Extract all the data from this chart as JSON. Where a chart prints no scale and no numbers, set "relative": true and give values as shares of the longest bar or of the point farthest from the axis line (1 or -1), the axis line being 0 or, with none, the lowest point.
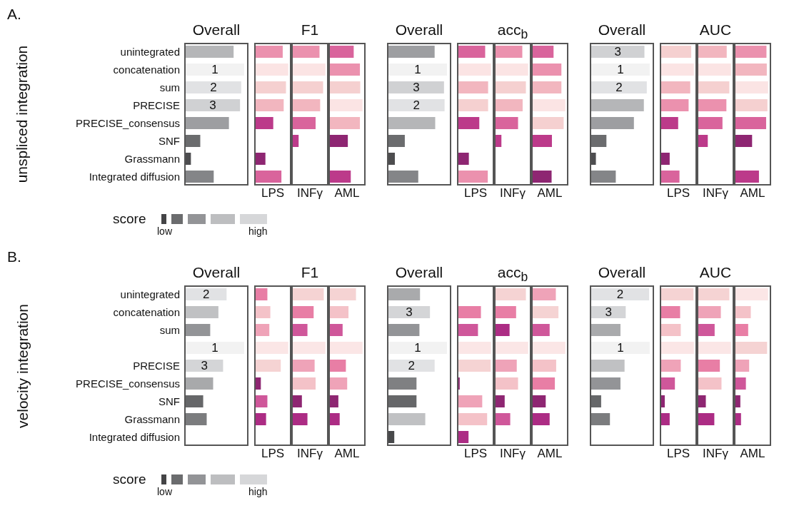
{
  "chart_data": [
    {
      "type": "bar",
      "orientation": "horizontal",
      "relative": true,
      "title": "Overall",
      "ylabel": "unspliced integration",
      "tick_labels": "y",
      "annotations": [
        "A.",
        "score",
        "low",
        "high",
        {
          "text": "1",
          "x": 1,
          "y": "concatenation"
        },
        {
          "text": "2",
          "x": 0.95,
          "y": "sum"
        },
        {
          "text": "3",
          "x": 0.93,
          "y": "PRECISE"
        }
      ],
      "categories": [
        "unintegrated",
        "concatenation",
        "sum",
        "PRECISE",
        "PRECISE_consensus",
        "SNF",
        "Grassmann",
        "Integrated diffusion"
      ],
      "values": [
        0.82,
        1,
        0.95,
        0.93,
        0.74,
        0.25,
        0.09,
        0.48
      ],
      "colors": [
        "#b5b6b8",
        "#f2f2f2",
        "#e1e2e4",
        "#d0d1d3",
        "#9d9ea1",
        "#6b6c6e",
        "#4d4d4f",
        "#848588"
      ]
    },
    {
      "type": "bar",
      "orientation": "horizontal",
      "relative": true,
      "xlabel": "LPS",
      "tick_labels": false,
      "categories": [
        "unintegrated",
        "concatenation",
        "sum",
        "PRECISE",
        "PRECISE_consensus",
        "SNF",
        "Grassmann",
        "Integrated diffusion"
      ],
      "values": [
        0.83,
        1,
        0.93,
        0.86,
        0.54,
        null,
        0.3,
        0.79
      ],
      "colors": [
        "#eb91ae",
        "#fbe4e4",
        "#f5d0d0",
        "#f2b6bf",
        "#bc3a8a",
        "#8e2672",
        "#8e2672",
        "#d9649c"
      ]
    },
    {
      "type": "bar",
      "orientation": "horizontal",
      "relative": true,
      "title": "F1",
      "xlabel": "INFγ",
      "tick_labels": false,
      "categories": [
        "unintegrated",
        "concatenation",
        "sum",
        "PRECISE",
        "PRECISE_consensus",
        "SNF",
        "Grassmann",
        "Integrated diffusion"
      ],
      "values": [
        0.82,
        1,
        0.93,
        0.84,
        0.7,
        0.18,
        null,
        null
      ],
      "colors": [
        "#eb91ae",
        "#fbe4e4",
        "#f5d0d0",
        "#f2b6bf",
        "#d9649c",
        "#bc3a8a",
        "#8e2672",
        "#8e2672"
      ]
    },
    {
      "type": "bar",
      "orientation": "horizontal",
      "relative": true,
      "xlabel": "AML",
      "tick_labels": false,
      "categories": [
        "unintegrated",
        "concatenation",
        "sum",
        "PRECISE",
        "PRECISE_consensus",
        "SNF",
        "Grassmann",
        "Integrated diffusion"
      ],
      "values": [
        0.73,
        0.92,
        0.93,
        1,
        0.92,
        0.55,
        null,
        0.64
      ],
      "colors": [
        "#d9649c",
        "#eb91ae",
        "#f5d0d0",
        "#fbe4e4",
        "#f2b6bf",
        "#8e2672",
        "#8e2672",
        "#bc3a8a"
      ]
    },
    {
      "type": "bar",
      "orientation": "horizontal",
      "relative": true,
      "title": "Overall",
      "tick_labels": false,
      "categories": [
        "unintegrated",
        "concatenation",
        "sum",
        "PRECISE",
        "PRECISE_consensus",
        "SNF",
        "Grassmann",
        "Integrated diffusion"
      ],
      "values": [
        0.79,
        1,
        0.95,
        0.96,
        0.8,
        0.28,
        0.11,
        0.51
      ],
      "colors": [
        "#9d9ea1",
        "#f2f2f2",
        "#d0d1d3",
        "#e1e2e4",
        "#b5b6b8",
        "#6b6c6e",
        "#4d4d4f",
        "#848588"
      ],
      "annotations": [
        {
          "text": "1",
          "x": 1,
          "y": "concatenation"
        },
        {
          "text": "3",
          "x": 0.95,
          "y": "sum"
        },
        {
          "text": "2",
          "x": 0.96,
          "y": "PRECISE"
        }
      ]
    },
    {
      "type": "bar",
      "orientation": "horizontal",
      "relative": true,
      "xlabel": "LPS",
      "tick_labels": false,
      "categories": [
        "unintegrated",
        "concatenation",
        "sum",
        "PRECISE",
        "PRECISE_consensus",
        "SNF",
        "Grassmann",
        "Integrated diffusion"
      ],
      "values": [
        0.82,
        1,
        0.91,
        0.91,
        0.64,
        null,
        0.32,
        0.9
      ],
      "colors": [
        "#d9649c",
        "#fbe4e4",
        "#f2b6bf",
        "#f5d0d0",
        "#bc3a8a",
        "#8e2672",
        "#8e2672",
        "#eb91ae"
      ]
    },
    {
      "type": "bar",
      "orientation": "horizontal",
      "relative": true,
      "title": "acc$_{b}$",
      "xlabel": "INFγ",
      "tick_labels": false,
      "categories": [
        "unintegrated",
        "concatenation",
        "sum",
        "PRECISE",
        "PRECISE_consensus",
        "SNF",
        "Grassmann",
        "Integrated diffusion"
      ],
      "values": [
        0.82,
        1,
        0.93,
        0.83,
        0.69,
        0.18,
        null,
        null
      ],
      "colors": [
        "#eb91ae",
        "#fbe4e4",
        "#f5d0d0",
        "#f2b6bf",
        "#d9649c",
        "#bc3a8a",
        "#8e2672",
        "#8e2672"
      ]
    },
    {
      "type": "bar",
      "orientation": "horizontal",
      "relative": true,
      "xlabel": "AML",
      "tick_labels": false,
      "categories": [
        "unintegrated",
        "concatenation",
        "sum",
        "PRECISE",
        "PRECISE_consensus",
        "SNF",
        "Grassmann",
        "Integrated diffusion"
      ],
      "values": [
        0.64,
        0.88,
        0.88,
        1,
        0.95,
        0.59,
        null,
        0.58
      ],
      "colors": [
        "#d9649c",
        "#eb91ae",
        "#f2b6bf",
        "#fbe4e4",
        "#f5d0d0",
        "#bc3a8a",
        "#8e2672",
        "#8e2672"
      ]
    },
    {
      "type": "bar",
      "orientation": "horizontal",
      "relative": true,
      "title": "Overall",
      "tick_labels": false,
      "categories": [
        "unintegrated",
        "concatenation",
        "sum",
        "PRECISE",
        "PRECISE_consensus",
        "SNF",
        "Grassmann",
        "Integrated diffusion"
      ],
      "values": [
        0.91,
        1,
        0.95,
        0.9,
        0.73,
        0.26,
        0.08,
        0.42
      ],
      "colors": [
        "#d0d1d3",
        "#f2f2f2",
        "#e1e2e4",
        "#b5b6b8",
        "#9d9ea1",
        "#6b6c6e",
        "#4d4d4f",
        "#848588"
      ],
      "annotations": [
        {
          "text": "3",
          "x": 0.91,
          "y": "unintegrated"
        },
        {
          "text": "1",
          "x": 1,
          "y": "concatenation"
        },
        {
          "text": "2",
          "x": 0.95,
          "y": "sum"
        }
      ]
    },
    {
      "type": "bar",
      "orientation": "horizontal",
      "relative": true,
      "xlabel": "LPS",
      "tick_labels": false,
      "categories": [
        "unintegrated",
        "concatenation",
        "sum",
        "PRECISE",
        "PRECISE_consensus",
        "SNF",
        "Grassmann",
        "Integrated diffusion"
      ],
      "values": [
        0.92,
        1,
        0.89,
        0.84,
        0.52,
        null,
        0.26,
        0.56
      ],
      "colors": [
        "#f5d0d0",
        "#fbe4e4",
        "#f2b6bf",
        "#eb91ae",
        "#bc3a8a",
        "#8e2672",
        "#8e2672",
        "#d9649c"
      ]
    },
    {
      "type": "bar",
      "orientation": "horizontal",
      "relative": true,
      "title": "AUC",
      "xlabel": "INFγ",
      "tick_labels": false,
      "categories": [
        "unintegrated",
        "concatenation",
        "sum",
        "PRECISE",
        "PRECISE_consensus",
        "SNF",
        "Grassmann",
        "Integrated diffusion"
      ],
      "values": [
        0.87,
        1,
        0.95,
        0.86,
        0.74,
        0.29,
        null,
        null
      ],
      "colors": [
        "#f2b6bf",
        "#fbe4e4",
        "#f5d0d0",
        "#eb91ae",
        "#d9649c",
        "#bc3a8a",
        "#8e2672",
        "#8e2672"
      ]
    },
    {
      "type": "bar",
      "orientation": "horizontal",
      "relative": true,
      "xlabel": "AML",
      "tick_labels": false,
      "categories": [
        "unintegrated",
        "concatenation",
        "sum",
        "PRECISE",
        "PRECISE_consensus",
        "SNF",
        "Grassmann",
        "Integrated diffusion"
      ],
      "values": [
        0.95,
        0.96,
        1,
        0.98,
        0.94,
        0.51,
        null,
        0.72
      ],
      "colors": [
        "#eb91ae",
        "#f2b6bf",
        "#fbe4e4",
        "#f5d0d0",
        "#d9649c",
        "#8e2672",
        "#8e2672",
        "#bc3a8a"
      ]
    },
    {
      "type": "bar",
      "orientation": "horizontal",
      "relative": true,
      "title": "Overall",
      "ylabel": "velocity integration",
      "tick_labels": "y",
      "annotations": [
        "B.",
        "score",
        "low",
        "high",
        {
          "text": "2",
          "x": 0.7,
          "y": "unintegrated"
        },
        {
          "text": "1",
          "x": 1
        },
        {
          "text": "3",
          "x": 0.64,
          "y": "PRECISE"
        }
      ],
      "categories": [
        "unintegrated",
        "concatenation",
        "sum",
        null,
        "PRECISE",
        "PRECISE_consensus",
        "SNF",
        "Grassmann",
        "Integrated diffusion"
      ],
      "values": [
        0.7,
        0.56,
        0.42,
        1,
        0.64,
        0.47,
        0.3,
        0.36,
        null
      ],
      "colors": [
        "#e1e2e4",
        "#c0c1c3",
        "#939497",
        "#f2f2f2",
        "#d4d5d7",
        "#a8a9ab",
        "#666769",
        "#7b7c7e",
        "#48494b"
      ]
    },
    {
      "type": "bar",
      "orientation": "horizontal",
      "relative": true,
      "xlabel": "LPS",
      "tick_labels": false,
      "categories": [
        "unintegrated",
        "concatenation",
        "sum",
        null,
        "PRECISE",
        "PRECISE_consensus",
        "SNF",
        "Grassmann",
        "Integrated diffusion"
      ],
      "values": [
        0.36,
        0.45,
        0.42,
        1,
        0.77,
        0.16,
        0.36,
        0.32,
        null
      ],
      "colors": [
        "#e87ea5",
        "#f4c2c8",
        "#efa3b8",
        "#fbe6e6",
        "#f5d3d3",
        "#8e2672",
        "#cf579a",
        "#ac2c84",
        "#ac2c84"
      ]
    },
    {
      "type": "bar",
      "orientation": "horizontal",
      "relative": true,
      "title": "F1",
      "xlabel": "INFγ",
      "tick_labels": false,
      "categories": [
        "unintegrated",
        "concatenation",
        "sum",
        null,
        "PRECISE",
        "PRECISE_consensus",
        "SNF",
        "Grassmann",
        "Integrated diffusion"
      ],
      "values": [
        0.95,
        0.64,
        0.45,
        1,
        0.67,
        0.7,
        0.28,
        0.45,
        null
      ],
      "colors": [
        "#f5d3d3",
        "#e87ea5",
        "#cf579a",
        "#fbe6e6",
        "#efa3b8",
        "#f4c2c8",
        "#8e2672",
        "#ac2c84",
        "#ac2c84"
      ]
    },
    {
      "type": "bar",
      "orientation": "horizontal",
      "relative": true,
      "xlabel": "AML",
      "tick_labels": false,
      "categories": [
        "unintegrated",
        "concatenation",
        "sum",
        null,
        "PRECISE",
        "PRECISE_consensus",
        "SNF",
        "Grassmann",
        "Integrated diffusion"
      ],
      "values": [
        0.8,
        0.57,
        0.39,
        1,
        0.49,
        0.53,
        0.26,
        0.3,
        null
      ],
      "colors": [
        "#f5d3d3",
        "#f4c2c8",
        "#cf579a",
        "#fbe6e6",
        "#e87ea5",
        "#efa3b8",
        "#8e2672",
        "#ac2c84",
        "#ac2c84"
      ]
    },
    {
      "type": "bar",
      "orientation": "horizontal",
      "relative": true,
      "title": "Overall",
      "tick_labels": false,
      "categories": [
        "unintegrated",
        "concatenation",
        "sum",
        null,
        "PRECISE",
        "PRECISE_consensus",
        "SNF",
        "Grassmann",
        "Integrated diffusion"
      ],
      "values": [
        0.54,
        0.71,
        0.53,
        1,
        0.79,
        0.48,
        0.48,
        0.63,
        0.1
      ],
      "colors": [
        "#a9aaac",
        "#d4d5d7",
        "#939497",
        "#f2f2f2",
        "#e1e2e4",
        "#7f8082",
        "#666769",
        "#c0c1c3",
        "#48494b"
      ],
      "annotations": [
        {
          "text": "3",
          "x": 0.71,
          "y": "concatenation"
        },
        {
          "text": "1",
          "x": 1
        },
        {
          "text": "2",
          "x": 0.79,
          "y": "PRECISE"
        }
      ]
    },
    {
      "type": "bar",
      "orientation": "horizontal",
      "relative": true,
      "xlabel": "LPS",
      "tick_labels": false,
      "categories": [
        "unintegrated",
        "concatenation",
        "sum",
        null,
        "PRECISE",
        "PRECISE_consensus",
        "SNF",
        "Grassmann",
        "Integrated diffusion"
      ],
      "values": [
        null,
        0.69,
        0.6,
        1,
        0.99,
        0.04,
        0.73,
        0.88,
        0.31
      ],
      "colors": [
        "#e87ea5",
        "#e87ea5",
        "#cf579a",
        "#fbe6e6",
        "#f5d3d3",
        "#8e2672",
        "#efa3b8",
        "#f4c2c8",
        "#ac2c84"
      ]
    },
    {
      "type": "bar",
      "orientation": "horizontal",
      "relative": true,
      "title": "acc$_{b}$",
      "xlabel": "INFγ",
      "tick_labels": false,
      "categories": [
        "unintegrated",
        "concatenation",
        "sum",
        null,
        "PRECISE",
        "PRECISE_consensus",
        "SNF",
        "Grassmann",
        "Integrated diffusion"
      ],
      "values": [
        0.93,
        0.63,
        0.43,
        1,
        0.65,
        0.69,
        0.28,
        0.45,
        null
      ],
      "colors": [
        "#f5d3d3",
        "#e87ea5",
        "#ac2c84",
        "#fbe6e6",
        "#efa3b8",
        "#f4c2c8",
        "#8e2672",
        "#cf579a",
        "#cf579a"
      ]
    },
    {
      "type": "bar",
      "orientation": "horizontal",
      "relative": true,
      "xlabel": "AML",
      "tick_labels": false,
      "categories": [
        "unintegrated",
        "concatenation",
        "sum",
        null,
        "PRECISE",
        "PRECISE_consensus",
        "SNF",
        "Grassmann",
        "Integrated diffusion"
      ],
      "values": [
        0.71,
        0.79,
        0.52,
        1,
        0.72,
        0.68,
        0.4,
        0.52,
        null
      ],
      "colors": [
        "#efa3b8",
        "#f5d3d3",
        "#cf579a",
        "#fbe6e6",
        "#f4c2c8",
        "#e87ea5",
        "#8e2672",
        "#ac2c84",
        "#ac2c84"
      ]
    },
    {
      "type": "bar",
      "orientation": "horizontal",
      "relative": true,
      "title": "Overall",
      "tick_labels": false,
      "categories": [
        "unintegrated",
        "concatenation",
        "sum",
        null,
        "PRECISE",
        "PRECISE_consensus",
        "SNF",
        "Grassmann",
        "Integrated diffusion"
      ],
      "values": [
        0.99,
        0.59,
        0.5,
        1,
        0.57,
        0.5,
        0.17,
        0.32,
        null
      ],
      "colors": [
        "#e1e2e4",
        "#d4d5d7",
        "#a9aaac",
        "#f2f2f2",
        "#c0c1c3",
        "#939497",
        "#666769",
        "#7b7c7e",
        "#7b7c7e"
      ],
      "annotations": [
        {
          "text": "2",
          "x": 0.99,
          "y": "unintegrated"
        },
        {
          "text": "3",
          "x": 0.59,
          "y": "concatenation"
        },
        {
          "text": "1",
          "x": 1
        }
      ]
    },
    {
      "type": "bar",
      "orientation": "horizontal",
      "relative": true,
      "xlabel": "LPS",
      "tick_labels": false,
      "categories": [
        "unintegrated",
        "concatenation",
        "sum",
        null,
        "PRECISE",
        "PRECISE_consensus",
        "SNF",
        "Grassmann",
        "Integrated diffusion"
      ],
      "values": [
        0.99,
        0.58,
        0.6,
        1,
        0.6,
        0.42,
        0.11,
        0.26,
        null
      ],
      "colors": [
        "#f5d3d3",
        "#e87ea5",
        "#f4c2c8",
        "#fbe6e6",
        "#efa3b8",
        "#cf579a",
        "#8e2672",
        "#ac2c84",
        "#ac2c84"
      ]
    },
    {
      "type": "bar",
      "orientation": "horizontal",
      "relative": true,
      "title": "AUC",
      "xlabel": "INFγ",
      "tick_labels": false,
      "categories": [
        "unintegrated",
        "concatenation",
        "sum",
        null,
        "PRECISE",
        "PRECISE_consensus",
        "SNF",
        "Grassmann",
        "Integrated diffusion"
      ],
      "values": [
        0.95,
        0.69,
        0.5,
        1,
        0.66,
        0.71,
        0.23,
        0.49,
        null
      ],
      "colors": [
        "#f5d3d3",
        "#efa3b8",
        "#cf579a",
        "#fbe6e6",
        "#e87ea5",
        "#f4c2c8",
        "#8e2672",
        "#ac2c84",
        "#ac2c84"
      ]
    },
    {
      "type": "bar",
      "orientation": "horizontal",
      "relative": true,
      "xlabel": "AML",
      "tick_labels": false,
      "categories": [
        "unintegrated",
        "concatenation",
        "sum",
        null,
        "PRECISE",
        "PRECISE_consensus",
        "SNF",
        "Grassmann",
        "Integrated diffusion"
      ],
      "values": [
        1,
        0.47,
        0.39,
        0.97,
        0.42,
        0.32,
        0.15,
        0.17,
        null
      ],
      "colors": [
        "#fbe6e6",
        "#f4c2c8",
        "#e87ea5",
        "#f5d3d3",
        "#efa3b8",
        "#cf579a",
        "#8e2672",
        "#ac2c84",
        "#ac2c84"
      ]
    }
  ]
}
